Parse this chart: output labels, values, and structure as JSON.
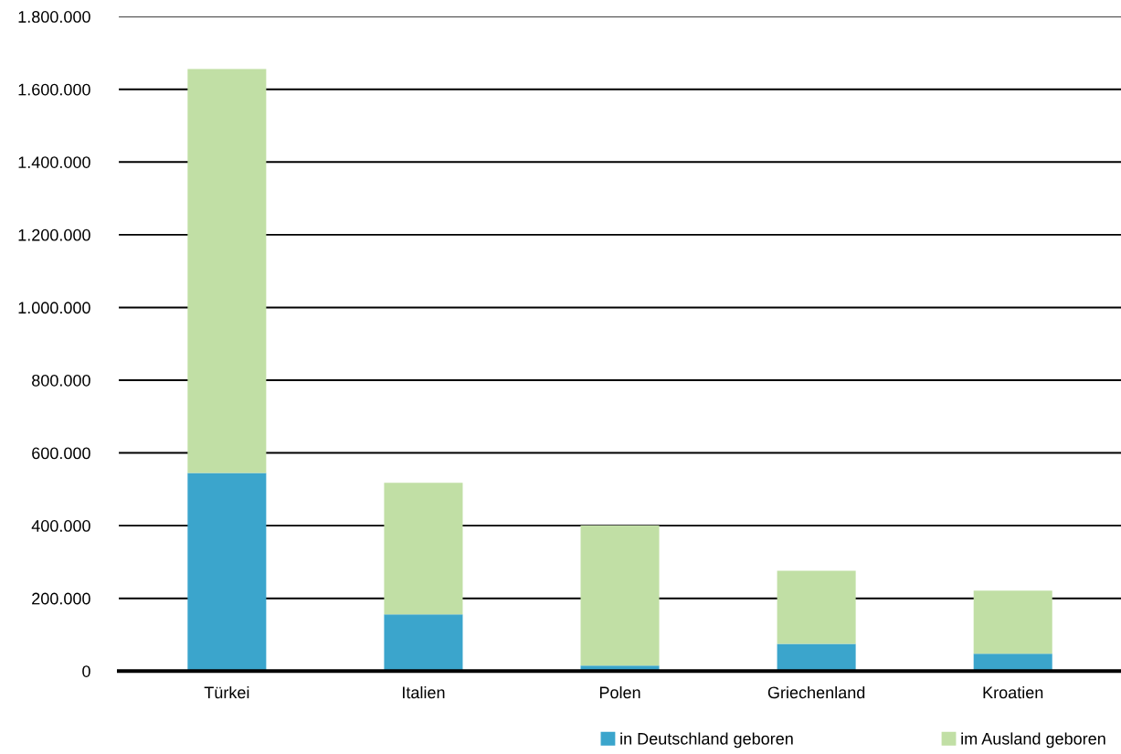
{
  "chart_data": {
    "type": "bar",
    "stacked": true,
    "categories": [
      "Türkei",
      "Italien",
      "Polen",
      "Griechenland",
      "Kroatien"
    ],
    "series": [
      {
        "name": "in Deutschland geboren",
        "color": "#3ba5cc",
        "values": [
          545000,
          156000,
          15000,
          75000,
          48000
        ]
      },
      {
        "name": "im Ausland geboren",
        "color": "#c1dfa5",
        "values": [
          1111000,
          362000,
          385000,
          201000,
          173000
        ]
      }
    ],
    "ylim": [
      0,
      1800000
    ],
    "yticks": [
      {
        "value": 0,
        "label": "0"
      },
      {
        "value": 200000,
        "label": "200.000"
      },
      {
        "value": 400000,
        "label": "400.000"
      },
      {
        "value": 600000,
        "label": "600.000"
      },
      {
        "value": 800000,
        "label": "800.000"
      },
      {
        "value": 1000000,
        "label": "1.000.000"
      },
      {
        "value": 1200000,
        "label": "1.200.000"
      },
      {
        "value": 1400000,
        "label": "1.400.000"
      },
      {
        "value": 1600000,
        "label": "1.600.000"
      },
      {
        "value": 1800000,
        "label": "1.800.000"
      }
    ],
    "grid": "y",
    "legend": "bottom"
  }
}
